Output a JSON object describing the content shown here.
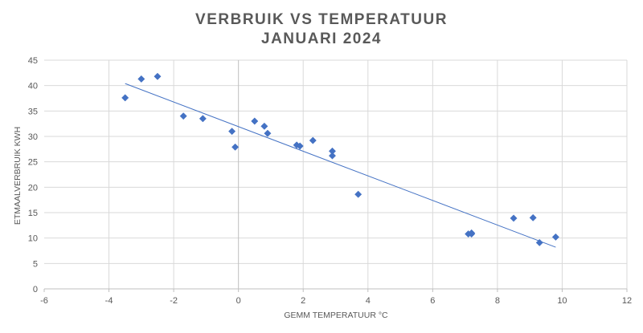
{
  "chart_data": {
    "type": "scatter",
    "title_lines": [
      "VERBRUIK VS TEMPERATUUR",
      "JANUARI 2024"
    ],
    "xlabel": "GEMM TEMPERATUUR °C",
    "ylabel": "ETMAALVERBRUIK KWH",
    "xlim": [
      -6,
      12
    ],
    "ylim": [
      0,
      45
    ],
    "xticks": [
      -6,
      -4,
      -2,
      0,
      2,
      4,
      6,
      8,
      10,
      12
    ],
    "yticks": [
      0,
      5,
      10,
      15,
      20,
      25,
      30,
      35,
      40,
      45
    ],
    "grid": true,
    "marker": "diamond",
    "series": [
      {
        "name": "Etmaalverbruik",
        "color": "#4472C4",
        "x": [
          -3.5,
          -3.0,
          -2.5,
          -1.7,
          -1.1,
          -0.2,
          -0.1,
          0.5,
          0.8,
          0.9,
          1.8,
          1.9,
          2.3,
          2.9,
          2.9,
          3.7,
          7.1,
          7.2,
          7.2,
          8.5,
          9.1,
          9.3,
          9.8
        ],
        "y": [
          37.6,
          41.3,
          41.8,
          34.0,
          33.5,
          31.0,
          27.9,
          33.0,
          32.0,
          30.6,
          28.3,
          28.1,
          29.2,
          27.1,
          26.2,
          18.6,
          10.8,
          10.8,
          11.0,
          13.9,
          14.0,
          9.1,
          10.2
        ]
      }
    ],
    "trendline": {
      "type": "linear",
      "color": "#4472C4",
      "x": [
        -3.5,
        9.8
      ],
      "y": [
        40.4,
        8.2
      ]
    }
  }
}
